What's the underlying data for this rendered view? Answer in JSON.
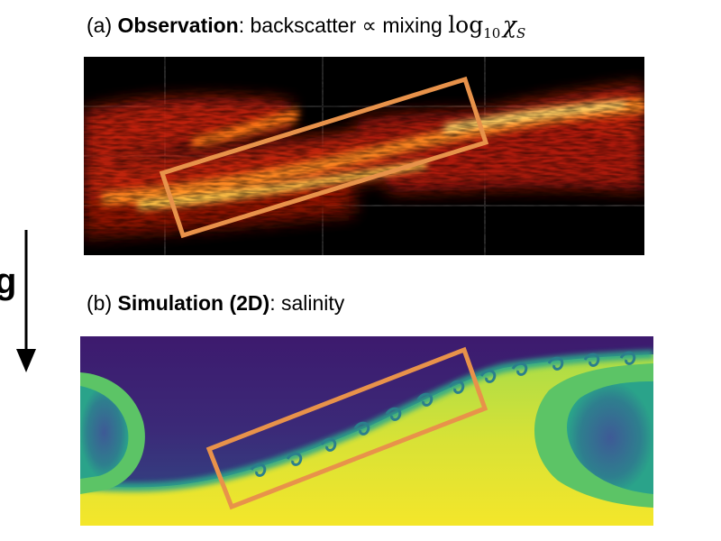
{
  "panel_a": {
    "label": "(a)",
    "title_bold": "Observation",
    "title_rest": ": backscatter ∝ mixing ",
    "math_log": "log",
    "math_sub": "10",
    "math_chi": "χ",
    "math_chi_sub": "S"
  },
  "panel_b": {
    "label": "(b)",
    "title_bold": "Simulation (2D)",
    "title_rest": ": salinity"
  },
  "gravity": {
    "label": "g"
  },
  "colors": {
    "highlight_box": "#e8924a",
    "hot_dark": "#000000",
    "hot_red": "#d42a10",
    "hot_yellow": "#ffe25a",
    "viridis_dark": "#3d1a6e",
    "viridis_teal": "#1f8f8c",
    "viridis_green": "#7cd05a",
    "viridis_yellow": "#f2e52c"
  }
}
